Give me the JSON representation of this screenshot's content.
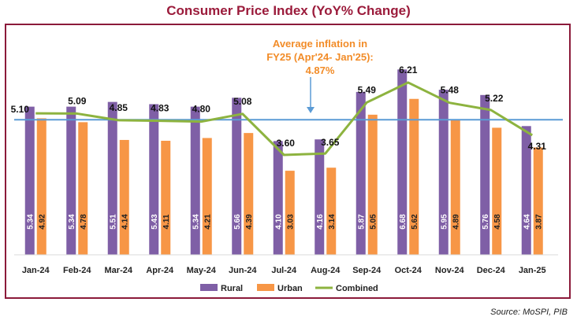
{
  "title": "Consumer Price Index (YoY% Change)",
  "source": "Source: MoSPI, PIB",
  "annotation": {
    "lines": [
      "Average inflation in",
      "FY25 (Apr'24- Jan'25):",
      "4.87%"
    ],
    "color": "#f28c28"
  },
  "chart_data": {
    "type": "bar",
    "categories": [
      "Jan-24",
      "Feb-24",
      "Mar-24",
      "Apr-24",
      "May-24",
      "Jun-24",
      "Jul-24",
      "Aug-24",
      "Sep-24",
      "Oct-24",
      "Nov-24",
      "Dec-24",
      "Jan-25"
    ],
    "series": [
      {
        "name": "Rural",
        "type": "bar",
        "color": "#7f5fa6",
        "values": [
          5.34,
          5.34,
          5.51,
          5.43,
          5.34,
          5.66,
          4.1,
          4.16,
          5.87,
          6.68,
          5.95,
          5.76,
          4.64
        ]
      },
      {
        "name": "Urban",
        "type": "bar",
        "color": "#f79646",
        "values": [
          4.92,
          4.78,
          4.14,
          4.11,
          4.21,
          4.39,
          3.03,
          3.14,
          5.05,
          5.62,
          4.89,
          4.58,
          3.87
        ]
      },
      {
        "name": "Combined",
        "type": "line",
        "color": "#8db33f",
        "values": [
          5.1,
          5.09,
          4.85,
          4.83,
          4.8,
          5.08,
          3.6,
          3.65,
          5.49,
          6.21,
          5.48,
          5.22,
          4.31
        ]
      }
    ],
    "reference_line": {
      "value": 4.87,
      "color": "#5b9bd5"
    },
    "ylim": [
      0,
      7.2
    ],
    "grid": false,
    "legend": "bottom-center"
  }
}
